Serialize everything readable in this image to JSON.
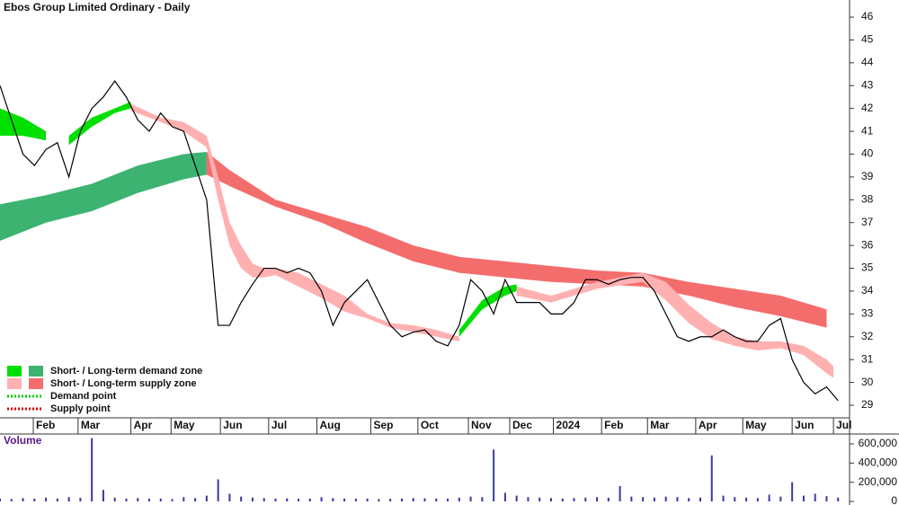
{
  "chart_data": [
    {
      "type": "line",
      "title": "Ebos Group Limited Ordinary - Daily",
      "color": "#000000",
      "xlim": [
        0,
        370
      ],
      "ylim": [
        27.74,
        46.75
      ],
      "yticks": [
        29,
        30,
        31,
        32,
        33,
        34,
        35,
        36,
        37,
        38,
        39,
        40,
        41,
        42,
        43,
        44,
        45,
        46
      ],
      "xticks": [
        {
          "value": 14.5,
          "label": "Feb"
        },
        {
          "value": 34,
          "label": "Mar"
        },
        {
          "value": 57,
          "label": "Apr"
        },
        {
          "value": 74.5,
          "label": "May"
        },
        {
          "value": 96,
          "label": "Jun"
        },
        {
          "value": 117,
          "label": "Jul"
        },
        {
          "value": 138,
          "label": "Aug"
        },
        {
          "value": 161.5,
          "label": "Sep"
        },
        {
          "value": 182,
          "label": "Oct"
        },
        {
          "value": 204,
          "label": "Nov"
        },
        {
          "value": 222,
          "label": "Dec"
        },
        {
          "value": 241,
          "label": "2024"
        },
        {
          "value": 262,
          "label": "Feb"
        },
        {
          "value": 282,
          "label": "Mar"
        },
        {
          "value": 303,
          "label": "Apr"
        },
        {
          "value": 323.5,
          "label": "May"
        },
        {
          "value": 345,
          "label": "Jun"
        },
        {
          "value": 363,
          "label": "Jul"
        }
      ],
      "x": [
        0,
        5,
        10,
        15,
        20,
        25,
        30,
        35,
        40,
        45,
        50,
        55,
        60,
        65,
        70,
        75,
        80,
        85,
        90,
        95,
        100,
        105,
        110,
        115,
        120,
        125,
        130,
        135,
        140,
        145,
        150,
        155,
        160,
        165,
        170,
        175,
        180,
        185,
        190,
        195,
        200,
        205,
        210,
        215,
        220,
        225,
        230,
        235,
        240,
        245,
        250,
        255,
        260,
        265,
        270,
        275,
        280,
        285,
        290,
        295,
        300,
        305,
        310,
        315,
        320,
        325,
        330,
        335,
        340,
        345,
        350,
        355,
        360,
        365
      ],
      "values": [
        43.0,
        41.5,
        40.0,
        39.5,
        40.2,
        40.5,
        39.0,
        41.0,
        42.0,
        42.5,
        43.2,
        42.5,
        41.5,
        41.0,
        41.8,
        41.2,
        41.0,
        39.5,
        38.0,
        32.5,
        32.5,
        33.5,
        34.3,
        35.0,
        35.0,
        34.8,
        35.0,
        34.8,
        34.0,
        32.5,
        33.5,
        34.0,
        34.5,
        33.5,
        32.5,
        32.0,
        32.2,
        32.3,
        31.8,
        31.6,
        32.5,
        34.5,
        34.0,
        33.0,
        34.5,
        33.5,
        33.5,
        33.5,
        33.0,
        33.0,
        33.5,
        34.5,
        34.5,
        34.3,
        34.5,
        34.6,
        34.6,
        34.0,
        33.0,
        32.0,
        31.8,
        32.0,
        32.0,
        32.3,
        32.0,
        31.8,
        31.8,
        32.5,
        32.8,
        31.0,
        30.0,
        29.5,
        29.8,
        29.2
      ],
      "bands": [
        {
          "color": "#3cb371",
          "x": [
            0,
            20,
            40,
            60,
            80,
            90
          ],
          "upper": [
            37.8,
            38.2,
            38.7,
            39.5,
            40.0,
            40.1
          ],
          "lower": [
            36.2,
            37.0,
            37.5,
            38.3,
            38.9,
            39.1
          ]
        },
        {
          "color": "#f46d6d",
          "x": [
            90,
            100,
            120,
            140,
            160,
            180,
            200,
            220,
            240,
            260,
            280,
            300,
            320,
            340,
            360
          ],
          "upper": [
            40.1,
            39.3,
            38.0,
            37.4,
            36.8,
            36.0,
            35.5,
            35.3,
            35.1,
            34.9,
            34.8,
            34.4,
            34.1,
            33.8,
            33.2
          ],
          "lower": [
            39.1,
            38.6,
            37.7,
            37.0,
            36.1,
            35.3,
            34.8,
            34.6,
            34.4,
            34.3,
            34.2,
            33.8,
            33.3,
            32.9,
            32.4
          ]
        },
        {
          "color": "#00e000",
          "x": [
            0,
            10,
            20
          ],
          "upper": [
            42.0,
            41.6,
            41.0
          ],
          "lower": [
            40.8,
            40.8,
            40.6
          ]
        },
        {
          "color": "#00e000",
          "x": [
            30,
            40,
            50,
            57
          ],
          "upper": [
            40.8,
            41.6,
            42.0,
            42.3
          ],
          "lower": [
            40.4,
            41.2,
            41.8,
            42.0
          ]
        },
        {
          "color": "#ffb0b0",
          "x": [
            57,
            70,
            80,
            90,
            95,
            100,
            105,
            110,
            115,
            120,
            130,
            140,
            150,
            160,
            170,
            180,
            190,
            200
          ],
          "upper": [
            42.2,
            41.6,
            41.4,
            40.8,
            39.0,
            37.0,
            36.0,
            35.2,
            35.0,
            35.0,
            34.8,
            34.3,
            33.8,
            33.0,
            32.6,
            32.5,
            32.3,
            32.0
          ],
          "lower": [
            41.9,
            41.4,
            41.0,
            40.3,
            38.0,
            36.0,
            35.0,
            34.6,
            34.6,
            34.7,
            34.2,
            33.7,
            33.1,
            32.8,
            32.4,
            32.2,
            32.0,
            31.8
          ]
        },
        {
          "color": "#00e000",
          "x": [
            200,
            210,
            220,
            225
          ],
          "upper": [
            32.3,
            33.6,
            34.2,
            34.3
          ],
          "lower": [
            32.0,
            33.2,
            33.8,
            34.0
          ]
        },
        {
          "color": "#ffb0b0",
          "x": [
            225,
            240,
            260,
            280,
            290,
            300,
            310,
            320,
            330,
            340,
            350,
            360,
            363
          ],
          "upper": [
            34.2,
            33.8,
            34.4,
            34.8,
            34.4,
            33.4,
            32.6,
            32.0,
            31.8,
            31.8,
            31.6,
            31.0,
            30.7
          ],
          "lower": [
            33.8,
            33.5,
            34.1,
            34.4,
            33.6,
            32.6,
            31.9,
            31.6,
            31.4,
            31.5,
            31.2,
            30.4,
            30.2
          ]
        }
      ],
      "legend": [
        {
          "label": "Short- / Long-term demand zone",
          "colors": [
            "#00e000",
            "#3cb371"
          ]
        },
        {
          "label": "Short- / Long-term supply zone",
          "colors": [
            "#ffb0b0",
            "#f46d6d"
          ]
        },
        {
          "label": "Demand point",
          "colors": [
            "#00cc00"
          ]
        },
        {
          "label": "Supply point",
          "colors": [
            "#dd0000"
          ]
        }
      ]
    },
    {
      "type": "bar",
      "title": "Volume",
      "color": "#3a3aa0",
      "xlim": [
        0,
        370
      ],
      "ylim": [
        0,
        684000
      ],
      "yticks": [
        0,
        {
          "value": 200000,
          "label": "200,000"
        },
        {
          "value": 400000,
          "label": "400,000"
        },
        {
          "value": 600000,
          "label": "600,000"
        }
      ],
      "x": [
        0,
        5,
        10,
        15,
        20,
        25,
        30,
        35,
        40,
        45,
        50,
        55,
        60,
        65,
        70,
        75,
        80,
        85,
        90,
        95,
        100,
        105,
        110,
        115,
        120,
        125,
        130,
        135,
        140,
        145,
        150,
        155,
        160,
        165,
        170,
        175,
        180,
        185,
        190,
        195,
        200,
        205,
        210,
        215,
        220,
        225,
        230,
        235,
        240,
        245,
        250,
        255,
        260,
        265,
        270,
        275,
        280,
        285,
        290,
        295,
        300,
        305,
        310,
        315,
        320,
        325,
        330,
        335,
        340,
        345,
        350,
        355,
        360,
        365
      ],
      "values": [
        30000,
        25000,
        35000,
        28000,
        40000,
        30000,
        45000,
        38000,
        660000,
        120000,
        40000,
        30000,
        35000,
        28000,
        30000,
        25000,
        45000,
        35000,
        60000,
        230000,
        80000,
        50000,
        40000,
        35000,
        30000,
        32000,
        28000,
        30000,
        45000,
        35000,
        30000,
        28000,
        30000,
        25000,
        28000,
        30000,
        35000,
        32000,
        30000,
        28000,
        40000,
        50000,
        45000,
        540000,
        90000,
        60000,
        45000,
        40000,
        35000,
        30000,
        35000,
        40000,
        45000,
        38000,
        160000,
        50000,
        45000,
        40000,
        50000,
        45000,
        35000,
        40000,
        480000,
        60000,
        45000,
        40000,
        35000,
        70000,
        50000,
        200000,
        60000,
        80000,
        55000,
        40000
      ]
    }
  ]
}
